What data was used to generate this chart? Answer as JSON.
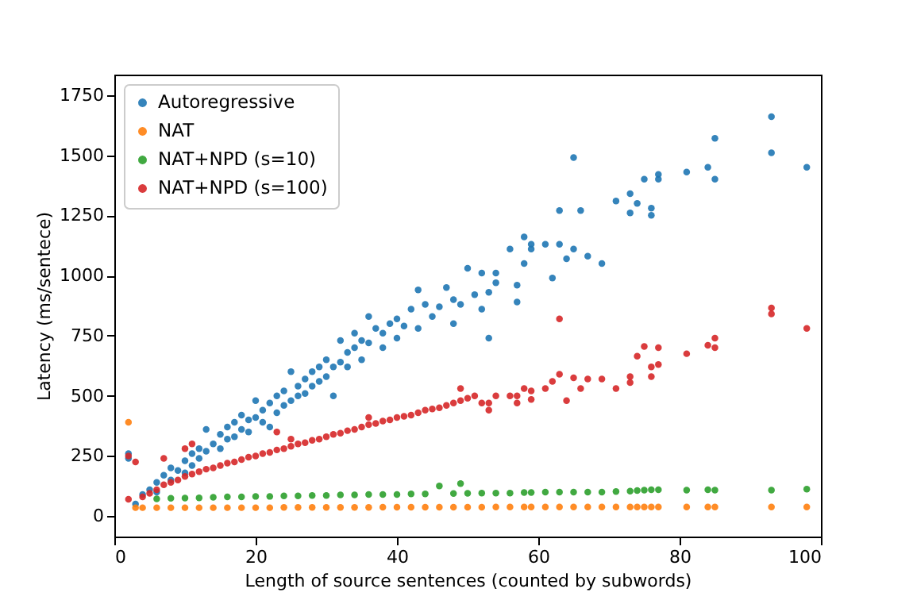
{
  "chart_data": {
    "type": "scatter",
    "xlabel": "Length of source sentences (counted by subwords)",
    "ylabel": "Latency (ms/sentece)",
    "xlim": [
      0,
      100
    ],
    "xticks": [
      0,
      20,
      40,
      60,
      80,
      100
    ],
    "ylim": [
      -85,
      1835
    ],
    "yticks": [
      0,
      250,
      500,
      750,
      1000,
      1250,
      1500,
      1750
    ],
    "grid": false,
    "legend": "top left",
    "marker": "circle",
    "series": [
      {
        "name": "Autoregressive",
        "color": "#1f77b4",
        "x": [
          2,
          2,
          3,
          4,
          5,
          6,
          6,
          7,
          8,
          8,
          9,
          10,
          10,
          11,
          11,
          12,
          12,
          13,
          13,
          14,
          15,
          15,
          16,
          16,
          17,
          17,
          18,
          18,
          19,
          19,
          20,
          20,
          21,
          21,
          22,
          22,
          23,
          23,
          24,
          24,
          25,
          25,
          26,
          26,
          27,
          27,
          28,
          28,
          29,
          29,
          30,
          30,
          31,
          31,
          32,
          32,
          33,
          33,
          34,
          34,
          35,
          35,
          36,
          36,
          37,
          38,
          38,
          39,
          40,
          40,
          41,
          42,
          43,
          43,
          44,
          45,
          46,
          47,
          48,
          48,
          49,
          50,
          51,
          52,
          52,
          53,
          53,
          54,
          54,
          56,
          57,
          57,
          58,
          58,
          59,
          59,
          61,
          62,
          63,
          63,
          64,
          65,
          65,
          66,
          67,
          69,
          71,
          73,
          73,
          74,
          75,
          76,
          76,
          77,
          77,
          81,
          84,
          85,
          85,
          93,
          93,
          98
        ],
        "values": [
          260,
          240,
          50,
          90,
          110,
          140,
          100,
          170,
          150,
          200,
          190,
          230,
          180,
          260,
          210,
          280,
          240,
          360,
          270,
          300,
          340,
          280,
          320,
          370,
          390,
          330,
          360,
          420,
          400,
          350,
          480,
          410,
          440,
          390,
          470,
          370,
          500,
          430,
          520,
          460,
          600,
          480,
          540,
          500,
          570,
          510,
          600,
          540,
          620,
          560,
          650,
          580,
          500,
          620,
          730,
          640,
          680,
          620,
          760,
          700,
          730,
          650,
          830,
          720,
          780,
          760,
          700,
          800,
          820,
          740,
          790,
          860,
          940,
          780,
          880,
          830,
          870,
          950,
          900,
          800,
          880,
          1030,
          920,
          1010,
          860,
          930,
          740,
          1010,
          970,
          1110,
          960,
          890,
          1160,
          1050,
          1130,
          1110,
          1130,
          990,
          1270,
          1130,
          1070,
          1490,
          1110,
          1270,
          1080,
          1050,
          1310,
          1340,
          1260,
          1300,
          1400,
          1280,
          1250,
          1420,
          1400,
          1430,
          1450,
          1570,
          1400,
          1660,
          1510,
          1450
        ]
      },
      {
        "name": "NAT",
        "color": "#ff7f0e",
        "x": [
          2,
          3,
          4,
          6,
          8,
          10,
          12,
          14,
          16,
          18,
          20,
          22,
          24,
          26,
          28,
          30,
          32,
          34,
          36,
          38,
          40,
          42,
          44,
          46,
          48,
          50,
          52,
          54,
          56,
          58,
          59,
          61,
          63,
          65,
          67,
          69,
          71,
          73,
          74,
          75,
          76,
          77,
          81,
          84,
          85,
          93,
          98
        ],
        "values": [
          390,
          35,
          35,
          35,
          35,
          35,
          35,
          35,
          35,
          35,
          35,
          35,
          36,
          36,
          36,
          36,
          36,
          36,
          36,
          37,
          37,
          37,
          37,
          37,
          37,
          37,
          37,
          38,
          38,
          38,
          38,
          38,
          38,
          38,
          38,
          38,
          38,
          38,
          38,
          38,
          38,
          38,
          38,
          38,
          38,
          38,
          38
        ]
      },
      {
        "name": "NAT+NPD (s=10)",
        "color": "#2ca02c",
        "x": [
          6,
          8,
          10,
          12,
          14,
          16,
          18,
          20,
          22,
          24,
          26,
          28,
          30,
          32,
          34,
          36,
          38,
          40,
          42,
          44,
          46,
          48,
          49,
          50,
          52,
          54,
          56,
          58,
          59,
          61,
          63,
          65,
          67,
          69,
          71,
          73,
          74,
          75,
          76,
          77,
          81,
          84,
          85,
          93,
          98
        ],
        "values": [
          72,
          74,
          75,
          76,
          78,
          80,
          80,
          82,
          82,
          84,
          84,
          86,
          86,
          88,
          88,
          90,
          90,
          90,
          92,
          92,
          125,
          94,
          135,
          95,
          96,
          96,
          96,
          98,
          98,
          100,
          100,
          100,
          100,
          100,
          102,
          104,
          106,
          108,
          110,
          110,
          108,
          110,
          108,
          108,
          112
        ]
      },
      {
        "name": "NAT+NPD (s=100)",
        "color": "#d62728",
        "x": [
          2,
          3,
          2,
          4,
          5,
          6,
          7,
          7,
          8,
          9,
          10,
          10,
          11,
          11,
          12,
          13,
          14,
          15,
          16,
          17,
          18,
          19,
          20,
          21,
          22,
          23,
          23,
          24,
          25,
          25,
          26,
          27,
          28,
          29,
          30,
          31,
          32,
          33,
          34,
          35,
          36,
          36,
          37,
          38,
          39,
          40,
          41,
          42,
          43,
          44,
          45,
          46,
          47,
          48,
          49,
          49,
          50,
          51,
          52,
          53,
          53,
          54,
          56,
          57,
          57,
          58,
          59,
          59,
          61,
          62,
          63,
          63,
          64,
          65,
          66,
          67,
          69,
          71,
          73,
          73,
          74,
          75,
          76,
          76,
          77,
          77,
          81,
          84,
          85,
          85,
          93,
          93,
          98
        ],
        "values": [
          250,
          225,
          70,
          80,
          95,
          110,
          240,
          130,
          140,
          150,
          280,
          165,
          300,
          175,
          185,
          195,
          200,
          210,
          220,
          225,
          235,
          245,
          250,
          260,
          265,
          350,
          275,
          280,
          320,
          290,
          300,
          305,
          315,
          320,
          330,
          340,
          345,
          355,
          360,
          370,
          410,
          380,
          385,
          395,
          400,
          410,
          415,
          420,
          430,
          440,
          445,
          450,
          460,
          470,
          530,
          480,
          490,
          500,
          470,
          470,
          440,
          500,
          500,
          500,
          470,
          530,
          520,
          485,
          530,
          560,
          820,
          590,
          480,
          575,
          530,
          570,
          570,
          530,
          580,
          555,
          665,
          705,
          620,
          580,
          700,
          630,
          675,
          710,
          740,
          700,
          865,
          840,
          780
        ]
      }
    ]
  }
}
